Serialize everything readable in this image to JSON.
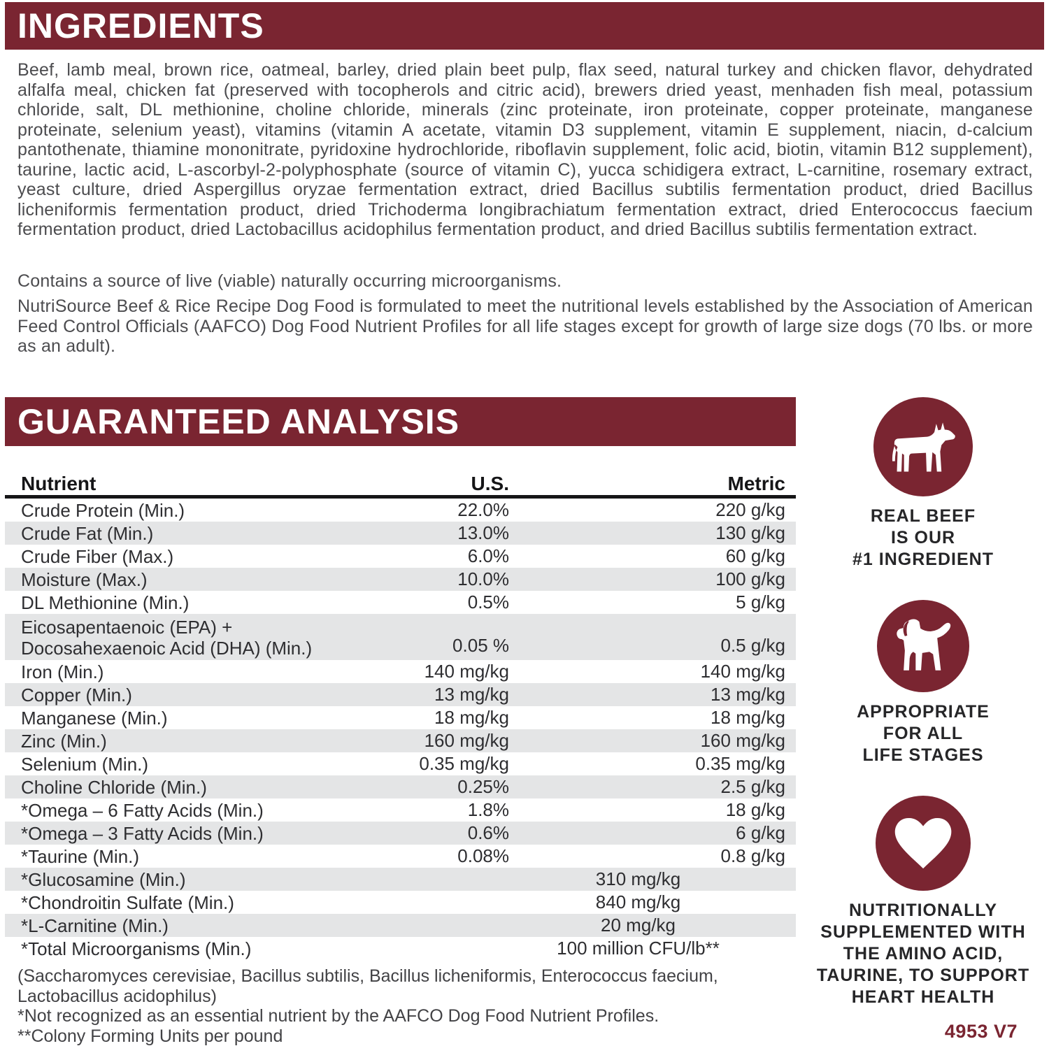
{
  "header": {
    "ingredients": "INGREDIENTS",
    "analysis": "GUARANTEED ANALYSIS"
  },
  "paragraphs": {
    "ingredients": "Beef, lamb meal, brown rice, oatmeal, barley, dried plain beet pulp, flax seed, natural turkey and chicken flavor, dehydrated alfalfa meal, chicken fat (preserved with tocopherols and citric acid), brewers dried yeast, menhaden fish meal, potassium chloride, salt, DL methionine, choline chloride, minerals (zinc proteinate, iron proteinate, copper proteinate, manganese proteinate, selenium yeast), vitamins (vitamin A acetate, vitamin D3 supplement, vitamin E supplement, niacin, d-calcium pantothenate, thiamine mononitrate, pyridoxine hydrochloride, riboflavin supplement, folic acid, biotin, vitamin B12 supplement), taurine, lactic acid, L-ascorbyl-2-polyphosphate (source of vitamin C), yucca schidigera extract, L-carnitine, rosemary extract, yeast culture, dried Aspergillus oryzae fermentation extract, dried Bacillus subtilis fermentation product, dried Bacillus licheniformis fermentation product, dried Trichoderma longibrachiatum fermentation extract, dried Enterococcus faecium fermentation product, dried Lactobacillus acidophilus fermentation product, and dried Bacillus subtilis fermentation extract.",
    "contains": "Contains a source of live (viable) naturally occurring microorganisms.",
    "formulation": "NutriSource Beef & Rice Recipe Dog Food is formulated to meet the nutritional levels established by the Association of American Feed Control Officials (AAFCO) Dog Food Nutrient Profiles for all life stages except for growth of large size dogs (70 lbs. or more as an adult)."
  },
  "table": {
    "columns": [
      "Nutrient",
      "U.S.",
      "Metric"
    ],
    "rows": [
      {
        "name": "Crude Protein (Min.)",
        "us": "22.0%",
        "metric": "220 g/kg",
        "shaded": false
      },
      {
        "name": "Crude Fat (Min.)",
        "us": "13.0%",
        "metric": "130 g/kg",
        "shaded": true
      },
      {
        "name": "Crude Fiber (Max.)",
        "us": "6.0%",
        "metric": "60 g/kg",
        "shaded": false
      },
      {
        "name": "Moisture (Max.)",
        "us": "10.0%",
        "metric": "100 g/kg",
        "shaded": true
      },
      {
        "name": "DL Methionine (Min.)",
        "us": "0.5%",
        "metric": "5 g/kg",
        "shaded": false
      },
      {
        "name_lines": [
          "Eicosapentaenoic (EPA) +",
          "Docosahexaenoic Acid (DHA) (Min.)"
        ],
        "us": "0.05 %",
        "metric": "0.5 g/kg",
        "shaded": true
      },
      {
        "name": "Iron (Min.)",
        "us": "140 mg/kg",
        "metric": "140 mg/kg",
        "shaded": false
      },
      {
        "name": "Copper (Min.)",
        "us": "13 mg/kg",
        "metric": "13 mg/kg",
        "shaded": true
      },
      {
        "name": "Manganese (Min.)",
        "us": "18 mg/kg",
        "metric": "18 mg/kg",
        "shaded": false
      },
      {
        "name": "Zinc (Min.)",
        "us": "160 mg/kg",
        "metric": "160 mg/kg",
        "shaded": true
      },
      {
        "name": "Selenium (Min.)",
        "us": "0.35 mg/kg",
        "metric": "0.35 mg/kg",
        "shaded": false
      },
      {
        "name": "Choline Chloride (Min.)",
        "us": "0.25%",
        "metric": "2.5 g/kg",
        "shaded": true
      },
      {
        "name": "*Omega – 6 Fatty Acids (Min.)",
        "us": "1.8%",
        "metric": "18 g/kg",
        "shaded": false
      },
      {
        "name": "*Omega – 3 Fatty Acids (Min.)",
        "us": "0.6%",
        "metric": "6 g/kg",
        "shaded": true
      },
      {
        "name": "*Taurine (Min.)",
        "us": "0.08%",
        "metric": "0.8 g/kg",
        "shaded": false
      },
      {
        "name": "*Glucosamine (Min.)",
        "combined": "310 mg/kg",
        "shaded": true
      },
      {
        "name": "*Chondroitin Sulfate (Min.)",
        "combined": "840 mg/kg",
        "shaded": false
      },
      {
        "name": "*L-Carnitine (Min.)",
        "combined": "20 mg/kg",
        "shaded": true
      },
      {
        "name": "*Total Microorganisms (Min.)",
        "combined": "100 million CFU/lb**",
        "shaded": false
      }
    ]
  },
  "footnotes": [
    "(Saccharomyces cerevisiae, Bacillus subtilis, Bacillus licheniformis, Enterococcus faecium, Lactobacillus acidophilus)",
    "*Not recognized as an essential nutrient by the AAFCO Dog Food Nutrient Profiles.",
    "**Colony Forming Units per pound"
  ],
  "badges": [
    {
      "icon": "cow-icon",
      "lines": [
        "REAL BEEF",
        "IS OUR",
        "#1 INGREDIENT"
      ]
    },
    {
      "icon": "puppy-icon",
      "lines": [
        "APPROPRIATE",
        "FOR ALL",
        "LIFE STAGES"
      ]
    },
    {
      "icon": "heart-icon",
      "lines": [
        "NUTRITIONALLY",
        "SUPPLEMENTED WITH",
        "THE AMINO ACID,",
        "TAURINE, TO SUPPORT",
        "HEART HEALTH"
      ]
    }
  ],
  "code": "4953 V7",
  "colors": {
    "maroon": "#7a2531",
    "row_stripe": "#e4e5e6",
    "rule_black": "#151517"
  }
}
